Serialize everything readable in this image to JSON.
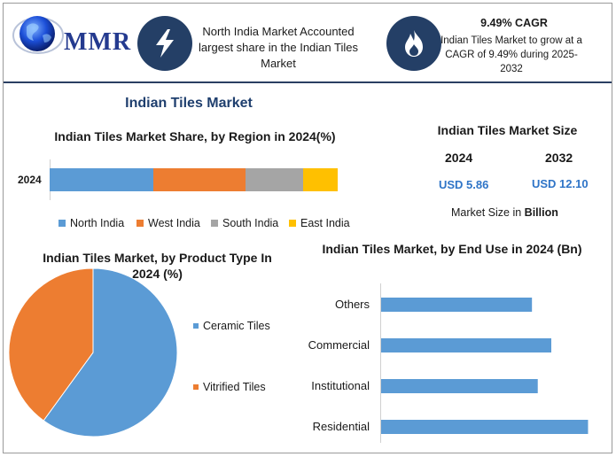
{
  "header": {
    "logo_text": "MMR",
    "info1_text": "North India Market Accounted largest share in the Indian Tiles Market",
    "info2_title": "9.49% CAGR",
    "info2_text": "Indian Tiles Market to grow at a CAGR of 9.49% during 2025-2032"
  },
  "main_title": "Indian Tiles Market",
  "market_size": {
    "title": "Indian Tiles Market Size",
    "year1": "2024",
    "year2": "2032",
    "value1": "USD 5.86",
    "value2": "USD 12.10",
    "note_prefix": "Market Size in ",
    "note_unit": "Billion"
  },
  "colors": {
    "blue": "#5b9bd5",
    "orange": "#ed7d31",
    "gray": "#a5a5a5",
    "yellow": "#ffc000",
    "icon_bg": "#243f66"
  },
  "chart_data": [
    {
      "type": "bar",
      "orientation": "horizontal-stacked",
      "title": "Indian Tiles Market Share, by Region in 2024(%)",
      "categories": [
        "2024"
      ],
      "series": [
        {
          "name": "North India",
          "values": [
            36
          ]
        },
        {
          "name": "West India",
          "values": [
            32
          ]
        },
        {
          "name": "South India",
          "values": [
            20
          ]
        },
        {
          "name": "East India",
          "values": [
            12
          ]
        }
      ],
      "legend": "bottom"
    },
    {
      "type": "pie",
      "title": "Indian Tiles Market, by Product Type In 2024 (%)",
      "labels": [
        "Ceramic Tiles",
        "Vitrified Tiles"
      ],
      "values": [
        60,
        40
      ],
      "legend": "right"
    },
    {
      "type": "bar",
      "orientation": "horizontal",
      "title": "Indian Tiles Market, by End Use in 2024 (Bn)",
      "categories": [
        "Others",
        "Commercial",
        "Institutional",
        "Residential"
      ],
      "values": [
        0.78,
        0.88,
        0.81,
        1.07
      ],
      "xlim": [
        0,
        1.1
      ]
    }
  ]
}
